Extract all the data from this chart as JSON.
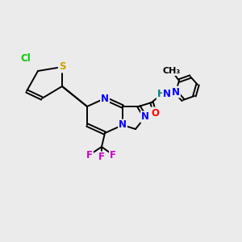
{
  "background_color": "#ebebeb",
  "bond_color": "#000000",
  "atom_colors": {
    "N": "#0000ff",
    "S": "#c8a000",
    "Cl": "#00cc00",
    "F": "#cc00cc",
    "O": "#ff0000",
    "H": "#008080",
    "C": "#000000"
  },
  "font_size": 8.5,
  "figsize": [
    3.0,
    3.0
  ],
  "dpi": 100
}
